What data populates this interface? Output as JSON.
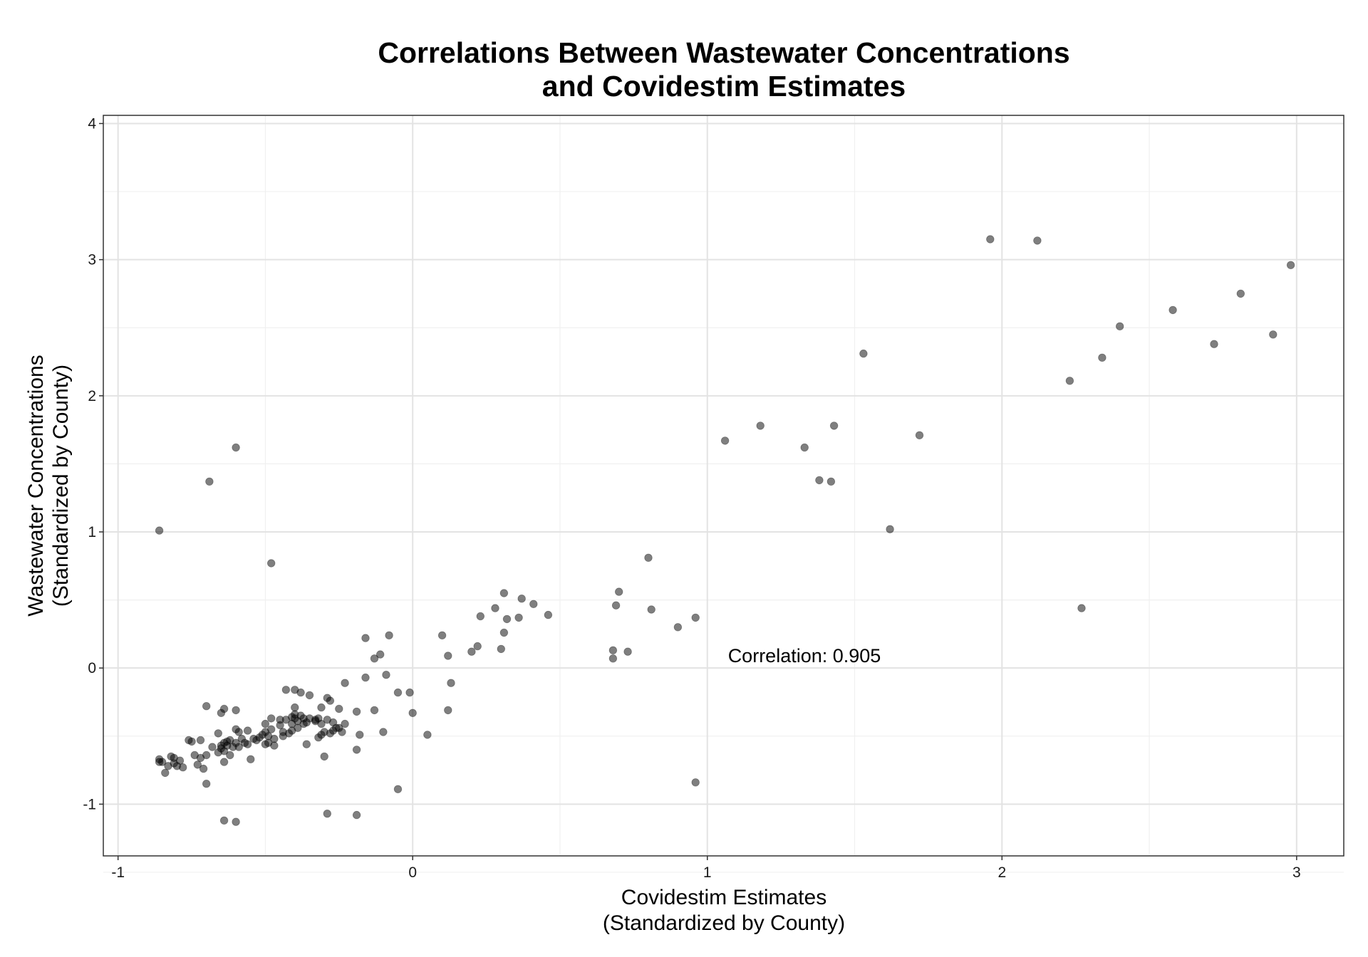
{
  "chart_data": {
    "type": "scatter",
    "title_lines": [
      "Correlations Between Wastewater Concentrations",
      "and Covidestim Estimates"
    ],
    "xlabel_lines": [
      "Covidestim Estimates",
      "(Standardized by County)"
    ],
    "ylabel_lines": [
      "Wastewater Concentrations",
      "(Standardized by County)"
    ],
    "xlim": [
      -1.05,
      3.16
    ],
    "ylim": [
      -1.38,
      4.06
    ],
    "xticks": [
      -1,
      0,
      1,
      2,
      3
    ],
    "yticks": [
      -1,
      0,
      1,
      2,
      3,
      4
    ],
    "xtick_labels": [
      "-1",
      "0",
      "1",
      "2",
      "3"
    ],
    "ytick_labels": [
      "-1",
      "0",
      "1",
      "2",
      "3",
      "4"
    ],
    "grid": true,
    "point_color": "#000000",
    "point_opacity": 0.5,
    "annotation": {
      "text": "Correlation: 0.905",
      "x": 1.07,
      "y": 0.09
    },
    "points": [
      [
        -0.86,
        1.01
      ],
      [
        -0.69,
        1.37
      ],
      [
        -0.6,
        1.62
      ],
      [
        -0.48,
        0.77
      ],
      [
        -0.7,
        -0.28
      ],
      [
        -0.6,
        -0.31
      ],
      [
        -0.64,
        -0.3
      ],
      [
        -0.65,
        -0.33
      ],
      [
        -0.86,
        -0.67
      ],
      [
        -0.86,
        -0.69
      ],
      [
        -0.85,
        -0.69
      ],
      [
        -0.84,
        -0.77
      ],
      [
        -0.83,
        -0.72
      ],
      [
        -0.82,
        -0.65
      ],
      [
        -0.81,
        -0.66
      ],
      [
        -0.81,
        -0.7
      ],
      [
        -0.8,
        -0.72
      ],
      [
        -0.79,
        -0.68
      ],
      [
        -0.78,
        -0.73
      ],
      [
        -0.76,
        -0.53
      ],
      [
        -0.75,
        -0.54
      ],
      [
        -0.74,
        -0.64
      ],
      [
        -0.73,
        -0.71
      ],
      [
        -0.72,
        -0.53
      ],
      [
        -0.72,
        -0.66
      ],
      [
        -0.71,
        -0.74
      ],
      [
        -0.7,
        -0.64
      ],
      [
        -0.7,
        -0.85
      ],
      [
        -0.68,
        -0.58
      ],
      [
        -0.66,
        -0.48
      ],
      [
        -0.66,
        -0.62
      ],
      [
        -0.65,
        -0.57
      ],
      [
        -0.65,
        -0.59
      ],
      [
        -0.64,
        -0.55
      ],
      [
        -0.64,
        -0.61
      ],
      [
        -0.64,
        -0.69
      ],
      [
        -0.63,
        -0.54
      ],
      [
        -0.63,
        -0.57
      ],
      [
        -0.62,
        -0.53
      ],
      [
        -0.62,
        -0.64
      ],
      [
        -0.61,
        -0.58
      ],
      [
        -0.6,
        -0.45
      ],
      [
        -0.6,
        -0.55
      ],
      [
        -0.59,
        -0.47
      ],
      [
        -0.59,
        -0.58
      ],
      [
        -0.58,
        -0.52
      ],
      [
        -0.57,
        -0.55
      ],
      [
        -0.56,
        -0.46
      ],
      [
        -0.56,
        -0.56
      ],
      [
        -0.55,
        -0.67
      ],
      [
        -0.54,
        -0.52
      ],
      [
        -0.53,
        -0.53
      ],
      [
        -0.52,
        -0.51
      ],
      [
        -0.51,
        -0.49
      ],
      [
        -0.5,
        -0.41
      ],
      [
        -0.5,
        -0.47
      ],
      [
        -0.5,
        -0.56
      ],
      [
        -0.49,
        -0.5
      ],
      [
        -0.49,
        -0.55
      ],
      [
        -0.48,
        -0.37
      ],
      [
        -0.48,
        -0.45
      ],
      [
        -0.47,
        -0.52
      ],
      [
        -0.47,
        -0.57
      ],
      [
        -0.45,
        -0.38
      ],
      [
        -0.45,
        -0.42
      ],
      [
        -0.44,
        -0.47
      ],
      [
        -0.44,
        -0.5
      ],
      [
        -0.43,
        -0.38
      ],
      [
        -0.42,
        -0.48
      ],
      [
        -0.43,
        -0.16
      ],
      [
        -0.41,
        -0.36
      ],
      [
        -0.41,
        -0.41
      ],
      [
        -0.41,
        -0.46
      ],
      [
        -0.4,
        -0.16
      ],
      [
        -0.4,
        -0.29
      ],
      [
        -0.4,
        -0.34
      ],
      [
        -0.4,
        -0.37
      ],
      [
        -0.39,
        -0.39
      ],
      [
        -0.39,
        -0.44
      ],
      [
        -0.38,
        -0.18
      ],
      [
        -0.38,
        -0.35
      ],
      [
        -0.37,
        -0.37
      ],
      [
        -0.37,
        -0.41
      ],
      [
        -0.36,
        -0.4
      ],
      [
        -0.36,
        -0.56
      ],
      [
        -0.35,
        -0.2
      ],
      [
        -0.35,
        -0.37
      ],
      [
        -0.33,
        -0.39
      ],
      [
        -0.33,
        -0.38
      ],
      [
        -0.32,
        -0.51
      ],
      [
        -0.32,
        -0.37
      ],
      [
        -0.31,
        -0.29
      ],
      [
        -0.31,
        -0.41
      ],
      [
        -0.31,
        -0.49
      ],
      [
        -0.3,
        -0.47
      ],
      [
        -0.3,
        -0.65
      ],
      [
        -0.29,
        -0.22
      ],
      [
        -0.29,
        -0.38
      ],
      [
        -0.28,
        -0.24
      ],
      [
        -0.28,
        -0.48
      ],
      [
        -0.27,
        -0.4
      ],
      [
        -0.27,
        -0.46
      ],
      [
        -0.26,
        -0.44
      ],
      [
        -0.25,
        -0.3
      ],
      [
        -0.25,
        -0.44
      ],
      [
        -0.24,
        -0.47
      ],
      [
        -0.23,
        -0.11
      ],
      [
        -0.23,
        -0.41
      ],
      [
        -0.19,
        -0.32
      ],
      [
        -0.19,
        -0.6
      ],
      [
        -0.18,
        -0.49
      ],
      [
        -0.16,
        0.22
      ],
      [
        -0.16,
        -0.07
      ],
      [
        -0.13,
        0.07
      ],
      [
        -0.13,
        -0.31
      ],
      [
        -0.11,
        0.1
      ],
      [
        -0.1,
        -0.47
      ],
      [
        -0.09,
        -0.05
      ],
      [
        -0.08,
        0.24
      ],
      [
        -0.05,
        -0.18
      ],
      [
        -0.05,
        -0.89
      ],
      [
        -0.01,
        -0.18
      ],
      [
        0.0,
        -0.33
      ],
      [
        0.05,
        -0.49
      ],
      [
        0.1,
        0.24
      ],
      [
        0.12,
        0.09
      ],
      [
        0.12,
        -0.31
      ],
      [
        0.13,
        -0.11
      ],
      [
        0.2,
        0.12
      ],
      [
        0.22,
        0.16
      ],
      [
        0.23,
        0.38
      ],
      [
        0.28,
        0.44
      ],
      [
        0.3,
        0.14
      ],
      [
        0.31,
        0.26
      ],
      [
        0.31,
        0.55
      ],
      [
        0.32,
        0.36
      ],
      [
        0.36,
        0.37
      ],
      [
        0.37,
        0.51
      ],
      [
        0.41,
        0.47
      ],
      [
        0.46,
        0.39
      ],
      [
        0.68,
        0.07
      ],
      [
        0.68,
        0.13
      ],
      [
        0.69,
        0.46
      ],
      [
        0.7,
        0.56
      ],
      [
        0.73,
        0.12
      ],
      [
        0.8,
        0.81
      ],
      [
        0.81,
        0.43
      ],
      [
        0.9,
        0.3
      ],
      [
        0.96,
        0.37
      ],
      [
        0.96,
        -0.84
      ],
      [
        -0.64,
        -1.12
      ],
      [
        -0.6,
        -1.13
      ],
      [
        -0.29,
        -1.07
      ],
      [
        -0.19,
        -1.08
      ],
      [
        1.06,
        1.67
      ],
      [
        1.18,
        1.78
      ],
      [
        1.33,
        1.62
      ],
      [
        1.38,
        1.38
      ],
      [
        1.42,
        1.37
      ],
      [
        1.43,
        1.78
      ],
      [
        1.53,
        2.31
      ],
      [
        1.62,
        1.02
      ],
      [
        1.72,
        1.71
      ],
      [
        1.96,
        3.15
      ],
      [
        2.12,
        3.14
      ],
      [
        2.23,
        2.11
      ],
      [
        2.27,
        0.44
      ],
      [
        2.34,
        2.28
      ],
      [
        2.4,
        2.51
      ],
      [
        2.58,
        2.63
      ],
      [
        2.72,
        2.38
      ],
      [
        2.81,
        2.75
      ],
      [
        2.92,
        2.45
      ],
      [
        2.98,
        2.96
      ]
    ]
  }
}
